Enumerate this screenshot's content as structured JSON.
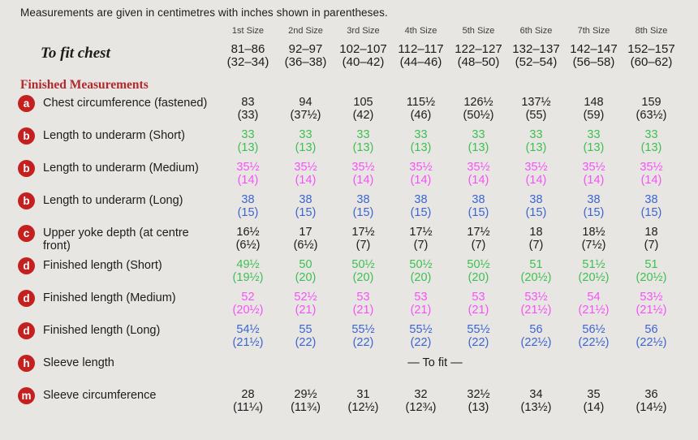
{
  "note": "Measurements are given in centimetres with inches shown in parentheses.",
  "colors": {
    "background": "#e7e6e3",
    "text": "#1c1c1c",
    "heading_red": "#b3282d",
    "badge_red": "#c3201f",
    "black": "#1c1c1c",
    "green": "#3fbf52",
    "magenta": "#f553f5",
    "blue": "#3d65cf"
  },
  "table": {
    "size_headers": [
      "1st Size",
      "2nd Size",
      "3rd Size",
      "4th Size",
      "5th Size",
      "6th Size",
      "7th Size",
      "8th Size"
    ],
    "to_fit_label": "To fit chest",
    "to_fit_values": [
      {
        "cm": "81–86",
        "in": "(32–34)"
      },
      {
        "cm": "92–97",
        "in": "(36–38)"
      },
      {
        "cm": "102–107",
        "in": "(40–42)"
      },
      {
        "cm": "112–117",
        "in": "(44–46)"
      },
      {
        "cm": "122–127",
        "in": "(48–50)"
      },
      {
        "cm": "132–137",
        "in": "(52–54)"
      },
      {
        "cm": "142–147",
        "in": "(56–58)"
      },
      {
        "cm": "152–157",
        "in": "(60–62)"
      }
    ],
    "section_heading": "Finished Measurements",
    "rows": [
      {
        "badge": "a",
        "label": "Chest circumference (fastened)",
        "color": "black",
        "values": [
          {
            "cm": "83",
            "in": "(33)"
          },
          {
            "cm": "94",
            "in": "(37½)"
          },
          {
            "cm": "105",
            "in": "(42)"
          },
          {
            "cm": "115½",
            "in": "(46)"
          },
          {
            "cm": "126½",
            "in": "(50½)"
          },
          {
            "cm": "137½",
            "in": "(55)"
          },
          {
            "cm": "148",
            "in": "(59)"
          },
          {
            "cm": "159",
            "in": "(63½)"
          }
        ]
      },
      {
        "badge": "b",
        "label": "Length to underarm (Short)",
        "color": "green",
        "values": [
          {
            "cm": "33",
            "in": "(13)"
          },
          {
            "cm": "33",
            "in": "(13)"
          },
          {
            "cm": "33",
            "in": "(13)"
          },
          {
            "cm": "33",
            "in": "(13)"
          },
          {
            "cm": "33",
            "in": "(13)"
          },
          {
            "cm": "33",
            "in": "(13)"
          },
          {
            "cm": "33",
            "in": "(13)"
          },
          {
            "cm": "33",
            "in": "(13)"
          }
        ]
      },
      {
        "badge": "b",
        "label": "Length to underarm (Medium)",
        "color": "magenta",
        "values": [
          {
            "cm": "35½",
            "in": "(14)"
          },
          {
            "cm": "35½",
            "in": "(14)"
          },
          {
            "cm": "35½",
            "in": "(14)"
          },
          {
            "cm": "35½",
            "in": "(14)"
          },
          {
            "cm": "35½",
            "in": "(14)"
          },
          {
            "cm": "35½",
            "in": "(14)"
          },
          {
            "cm": "35½",
            "in": "(14)"
          },
          {
            "cm": "35½",
            "in": "(14)"
          }
        ]
      },
      {
        "badge": "b",
        "label": "Length to underarm (Long)",
        "color": "blue",
        "values": [
          {
            "cm": "38",
            "in": "(15)"
          },
          {
            "cm": "38",
            "in": "(15)"
          },
          {
            "cm": "38",
            "in": "(15)"
          },
          {
            "cm": "38",
            "in": "(15)"
          },
          {
            "cm": "38",
            "in": "(15)"
          },
          {
            "cm": "38",
            "in": "(15)"
          },
          {
            "cm": "38",
            "in": "(15)"
          },
          {
            "cm": "38",
            "in": "(15)"
          }
        ]
      },
      {
        "badge": "c",
        "label": "Upper yoke depth (at centre front)",
        "color": "black",
        "values": [
          {
            "cm": "16½",
            "in": "(6½)"
          },
          {
            "cm": "17",
            "in": "(6½)"
          },
          {
            "cm": "17½",
            "in": "(7)"
          },
          {
            "cm": "17½",
            "in": "(7)"
          },
          {
            "cm": "17½",
            "in": "(7)"
          },
          {
            "cm": "18",
            "in": "(7)"
          },
          {
            "cm": "18½",
            "in": "(7½)"
          },
          {
            "cm": "18",
            "in": "(7)"
          }
        ]
      },
      {
        "badge": "d",
        "label": "Finished length (Short)",
        "color": "green",
        "values": [
          {
            "cm": "49½",
            "in": "(19½)"
          },
          {
            "cm": "50",
            "in": "(20)"
          },
          {
            "cm": "50½",
            "in": "(20)"
          },
          {
            "cm": "50½",
            "in": "(20)"
          },
          {
            "cm": "50½",
            "in": "(20)"
          },
          {
            "cm": "51",
            "in": "(20½)"
          },
          {
            "cm": "51½",
            "in": "(20½)"
          },
          {
            "cm": "51",
            "in": "(20½)"
          }
        ]
      },
      {
        "badge": "d",
        "label": "Finished length (Medium)",
        "color": "magenta",
        "values": [
          {
            "cm": "52",
            "in": "(20½)"
          },
          {
            "cm": "52½",
            "in": "(21)"
          },
          {
            "cm": "53",
            "in": "(21)"
          },
          {
            "cm": "53",
            "in": "(21)"
          },
          {
            "cm": "53",
            "in": "(21)"
          },
          {
            "cm": "53½",
            "in": "(21½)"
          },
          {
            "cm": "54",
            "in": "(21½)"
          },
          {
            "cm": "53½",
            "in": "(21½)"
          }
        ]
      },
      {
        "badge": "d",
        "label": "Finished length (Long)",
        "color": "blue",
        "values": [
          {
            "cm": "54½",
            "in": "(21½)"
          },
          {
            "cm": "55",
            "in": "(22)"
          },
          {
            "cm": "55½",
            "in": "(22)"
          },
          {
            "cm": "55½",
            "in": "(22)"
          },
          {
            "cm": "55½",
            "in": "(22)"
          },
          {
            "cm": "56",
            "in": "(22½)"
          },
          {
            "cm": "56½",
            "in": "(22½)"
          },
          {
            "cm": "56",
            "in": "(22½)"
          }
        ]
      },
      {
        "badge": "h",
        "label": "Sleeve length",
        "color": "black",
        "span_text": "— To fit —"
      },
      {
        "badge": "m",
        "label": "Sleeve circumference",
        "color": "black",
        "values": [
          {
            "cm": "28",
            "in": "(11¼)"
          },
          {
            "cm": "29½",
            "in": "(11¾)"
          },
          {
            "cm": "31",
            "in": "(12½)"
          },
          {
            "cm": "32",
            "in": "(12¾)"
          },
          {
            "cm": "32½",
            "in": "(13)"
          },
          {
            "cm": "34",
            "in": "(13½)"
          },
          {
            "cm": "35",
            "in": "(14)"
          },
          {
            "cm": "36",
            "in": "(14½)"
          }
        ]
      }
    ]
  }
}
